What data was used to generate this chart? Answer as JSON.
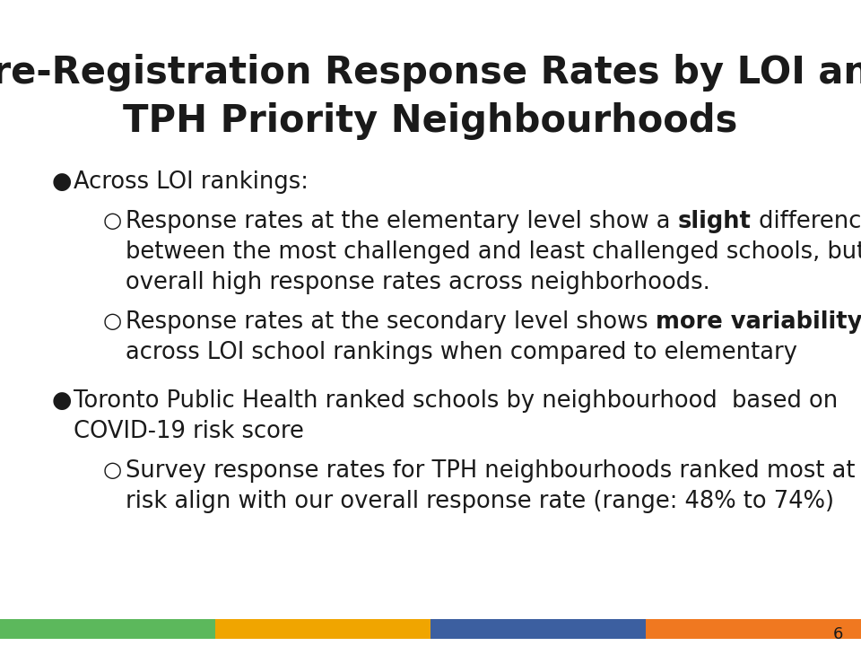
{
  "title_line1": "Pre-Registration Response Rates by LOI and",
  "title_line2": "TPH Priority Neighbourhoods",
  "title_fontsize": 30,
  "body_fontsize": 18.5,
  "background_color": "#ffffff",
  "text_color": "#1a1a1a",
  "footer_colors": [
    "#5cb85c",
    "#f0a500",
    "#3c5fa0",
    "#f07820"
  ],
  "page_number": "6"
}
